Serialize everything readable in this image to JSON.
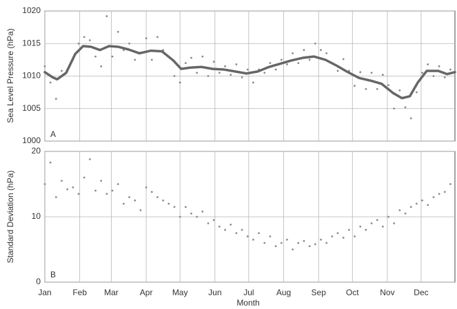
{
  "chart_data": [
    {
      "type": "scatter",
      "ylabel": "Sea Level Pressure (hPa)",
      "annotation": "A",
      "xlim": [
        1,
        365
      ],
      "ylim": [
        1000,
        1020
      ],
      "yticks": [
        1000,
        1005,
        1010,
        1015,
        1020
      ],
      "grid": true,
      "series": [
        {
          "type": "scatter",
          "color": "#8a8a8a",
          "x": [
            1,
            6,
            11,
            16,
            21,
            26,
            31,
            36,
            41,
            46,
            51,
            56,
            61,
            66,
            71,
            76,
            81,
            86,
            91,
            96,
            101,
            106,
            111,
            116,
            121,
            126,
            131,
            136,
            141,
            146,
            151,
            156,
            161,
            166,
            171,
            176,
            181,
            186,
            191,
            196,
            201,
            206,
            211,
            216,
            221,
            226,
            231,
            236,
            241,
            246,
            251,
            256,
            261,
            266,
            271,
            276,
            281,
            286,
            291,
            296,
            301,
            306,
            311,
            316,
            321,
            326,
            331,
            336,
            341,
            346,
            351,
            356,
            361
          ],
          "values": [
            1011.5,
            1009,
            1006.5,
            1010.8,
            1011,
            1012.5,
            1015,
            1016,
            1015.5,
            1013,
            1011.5,
            1019.2,
            1013,
            1016.8,
            1014,
            1015,
            1012.5,
            1013.6,
            1015.8,
            1012.5,
            1016,
            1014,
            1013,
            1010,
            1009,
            1012,
            1012.8,
            1010.5,
            1013,
            1010,
            1012.2,
            1010.5,
            1011.5,
            1010.2,
            1011.8,
            1009.8,
            1011,
            1009,
            1011,
            1010.5,
            1012,
            1011,
            1012.5,
            1011.8,
            1013.5,
            1012,
            1014,
            1012.5,
            1015,
            1014,
            1013.5,
            1012,
            1010.8,
            1012.6,
            1010.8,
            1008.5,
            1010.6,
            1008,
            1010.5,
            1008,
            1010.2,
            1008.6,
            1005,
            1007.8,
            1005.2,
            1003.5,
            1007.5,
            1010.5,
            1011.8,
            1010,
            1011.5,
            1009.8,
            1011
          ]
        },
        {
          "type": "line",
          "color": "#666666",
          "x": [
            1,
            8,
            12,
            20,
            28,
            35,
            42,
            50,
            58,
            66,
            75,
            85,
            95,
            105,
            115,
            122,
            130,
            140,
            150,
            160,
            170,
            180,
            190,
            200,
            210,
            220,
            230,
            240,
            250,
            260,
            270,
            280,
            290,
            300,
            310,
            318,
            325,
            332,
            340,
            350,
            358,
            365
          ],
          "values": [
            1010.6,
            1009.8,
            1009.5,
            1010.5,
            1013.4,
            1014.6,
            1014.5,
            1014,
            1014.6,
            1014.5,
            1014.1,
            1013.5,
            1013.9,
            1013.8,
            1012.4,
            1011.1,
            1011.3,
            1011.4,
            1011.1,
            1011,
            1010.7,
            1010.4,
            1010.7,
            1011.4,
            1011.9,
            1012.4,
            1012.8,
            1013,
            1012.5,
            1011.6,
            1010.6,
            1009.7,
            1009.3,
            1008.8,
            1007.4,
            1006.6,
            1006.9,
            1009,
            1010.8,
            1010.8,
            1010.3,
            1010.6
          ]
        }
      ]
    },
    {
      "type": "scatter",
      "ylabel": "Standard Deviation (hPa)",
      "xlabel": "Month",
      "annotation": "B",
      "xlim": [
        1,
        365
      ],
      "ylim": [
        0,
        20
      ],
      "yticks": [
        0,
        10,
        20
      ],
      "grid": true,
      "xticks": [
        {
          "value": 1,
          "label": "Jan"
        },
        {
          "value": 32,
          "label": "Feb"
        },
        {
          "value": 60,
          "label": "Mar"
        },
        {
          "value": 91,
          "label": "Apr"
        },
        {
          "value": 121,
          "label": "May"
        },
        {
          "value": 152,
          "label": "Jun"
        },
        {
          "value": 182,
          "label": "Jul"
        },
        {
          "value": 213,
          "label": "Aug"
        },
        {
          "value": 244,
          "label": "Sep"
        },
        {
          "value": 274,
          "label": "Oct"
        },
        {
          "value": 305,
          "label": "Nov"
        },
        {
          "value": 335,
          "label": "Dec"
        }
      ],
      "series": [
        {
          "type": "scatter",
          "color": "#8a8a8a",
          "x": [
            1,
            6,
            11,
            16,
            21,
            26,
            31,
            36,
            41,
            46,
            51,
            56,
            61,
            66,
            71,
            76,
            81,
            86,
            91,
            96,
            101,
            106,
            111,
            116,
            121,
            126,
            131,
            136,
            141,
            146,
            151,
            156,
            161,
            166,
            171,
            176,
            181,
            186,
            191,
            196,
            201,
            206,
            211,
            216,
            221,
            226,
            231,
            236,
            241,
            246,
            251,
            256,
            261,
            266,
            271,
            276,
            281,
            286,
            291,
            296,
            301,
            306,
            311,
            316,
            321,
            326,
            331,
            336,
            341,
            346,
            351,
            356,
            361
          ],
          "values": [
            15,
            18.3,
            13,
            15.5,
            14.2,
            14.5,
            13.5,
            16,
            18.8,
            14,
            15.5,
            13.5,
            14,
            15,
            12,
            13,
            12.5,
            11,
            14.5,
            13.8,
            13,
            12.5,
            12,
            11.5,
            10,
            11.5,
            10.5,
            10,
            10.8,
            9,
            9.5,
            8.5,
            8,
            8.8,
            7.5,
            8,
            7,
            6.5,
            7.5,
            6,
            7,
            5.5,
            6,
            6.5,
            5,
            6,
            6.3,
            5.5,
            5.8,
            6.5,
            6,
            7,
            7.5,
            6.8,
            8,
            7,
            8.5,
            8,
            9,
            9.5,
            8.5,
            10,
            9,
            11,
            10.5,
            11.5,
            12,
            12.5,
            11.8,
            13,
            13.5,
            13.8,
            15
          ]
        }
      ]
    }
  ]
}
